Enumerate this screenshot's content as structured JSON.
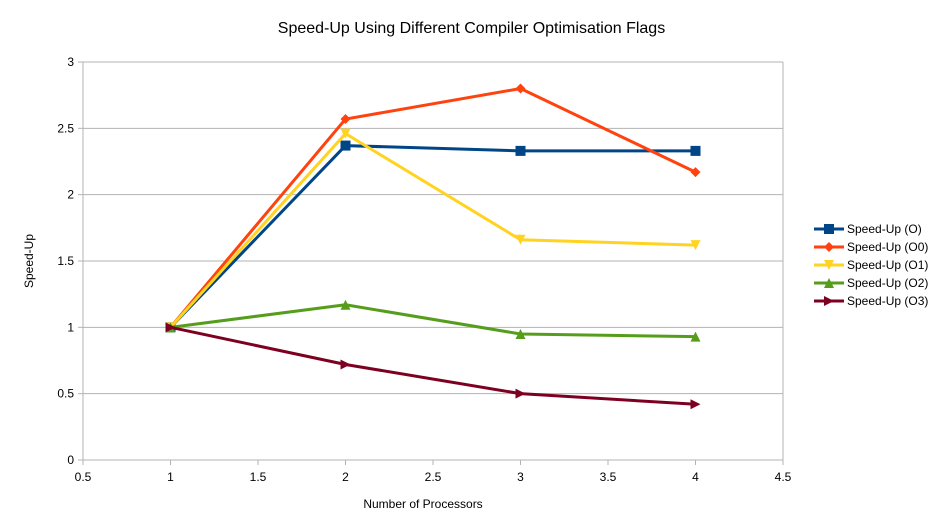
{
  "chart_data": {
    "type": "line",
    "title": "Speed-Up Using Different Compiler Optimisation Flags",
    "xlabel": "Number of Processors",
    "ylabel": "Speed-Up",
    "xlim": [
      0.5,
      4.5
    ],
    "ylim": [
      0,
      3
    ],
    "x_ticks": [
      0.5,
      1,
      1.5,
      2,
      2.5,
      3,
      3.5,
      4,
      4.5
    ],
    "y_ticks": [
      0,
      0.5,
      1,
      1.5,
      2,
      2.5,
      3
    ],
    "grid": "horizontal",
    "legend_position": "right",
    "series": [
      {
        "name": "Speed-Up (O)",
        "color": "#004586",
        "marker": "square",
        "x": [
          1,
          2,
          3,
          4
        ],
        "y": [
          1,
          2.37,
          2.33,
          2.33
        ]
      },
      {
        "name": "Speed-Up (O0)",
        "color": "#ff420e",
        "marker": "diamond",
        "x": [
          1,
          2,
          3,
          4
        ],
        "y": [
          1,
          2.57,
          2.8,
          2.17
        ]
      },
      {
        "name": "Speed-Up (O1)",
        "color": "#ffd320",
        "marker": "triangle-down",
        "x": [
          1,
          2,
          3,
          4
        ],
        "y": [
          1,
          2.46,
          1.66,
          1.62
        ]
      },
      {
        "name": "Speed-Up (O2)",
        "color": "#579d1c",
        "marker": "triangle-up",
        "x": [
          1,
          2,
          3,
          4
        ],
        "y": [
          1,
          1.17,
          0.95,
          0.93
        ]
      },
      {
        "name": "Speed-Up (O3)",
        "color": "#7e0021",
        "marker": "triangle-right",
        "x": [
          1,
          2,
          3,
          4
        ],
        "y": [
          1,
          0.72,
          0.5,
          0.42
        ]
      }
    ]
  }
}
